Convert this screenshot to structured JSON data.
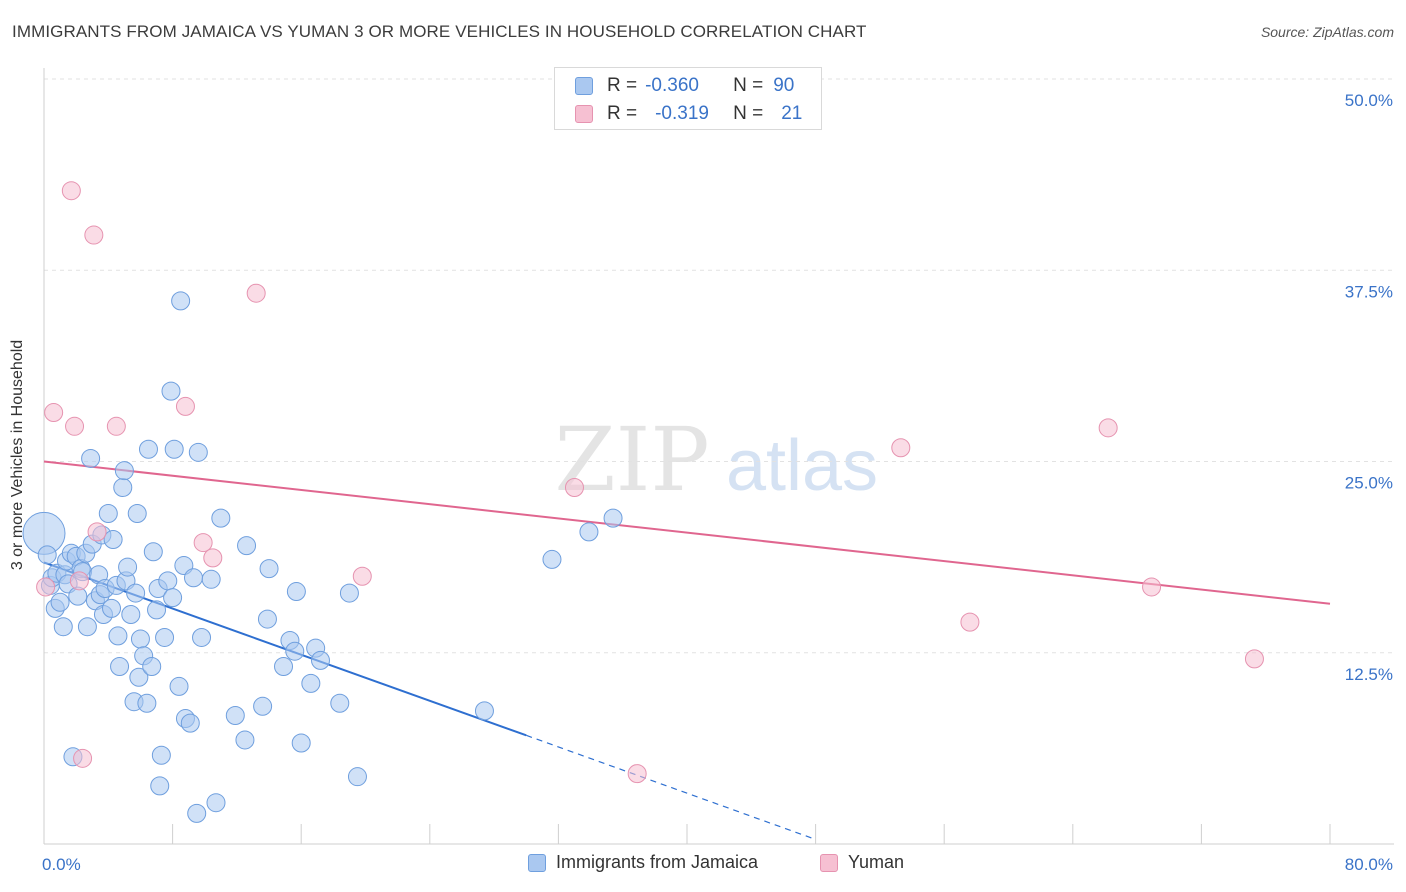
{
  "title": "IMMIGRANTS FROM JAMAICA VS YUMAN 3 OR MORE VEHICLES IN HOUSEHOLD CORRELATION CHART",
  "source": "Source: ZipAtlas.com",
  "watermark": {
    "zip": "ZIP",
    "atlas": "atlas"
  },
  "colors": {
    "blue_fill": "#aac8f0",
    "blue_stroke": "#6f9fde",
    "blue_line": "#2e6fd0",
    "pink_fill": "#f6c0d2",
    "pink_stroke": "#e693b0",
    "pink_line": "#e0668f",
    "tick_label": "#3a73c8",
    "grid": "#e2e2e2"
  },
  "stats_legend": [
    {
      "r_label": "R =",
      "r_value": "-0.360",
      "n_label": "N =",
      "n_value": "90"
    },
    {
      "r_label": "R =",
      "r_value": "-0.319",
      "n_label": "N =",
      "n_value": "21"
    }
  ],
  "chart_data": {
    "type": "scatter",
    "title": "IMMIGRANTS FROM JAMAICA VS YUMAN 3 OR MORE VEHICLES IN HOUSEHOLD CORRELATION CHART",
    "xlabel": "",
    "ylabel": "3 or more Vehicles in Household",
    "xlim": [
      0,
      80
    ],
    "ylim": [
      0,
      50
    ],
    "x_tick_labels": [
      "0.0%",
      "80.0%"
    ],
    "y_ticks": [
      12.5,
      25.0,
      37.5,
      50.0
    ],
    "y_tick_labels": [
      "12.5%",
      "25.0%",
      "37.5%",
      "50.0%"
    ],
    "grid": true,
    "legend_position": "bottom-center",
    "series": [
      {
        "name": "Immigrants from Jamaica",
        "color": "#aac8f0",
        "r": -0.36,
        "n": 90,
        "trend": {
          "x_start": 0,
          "y_start": 18.4,
          "x_end": 30,
          "y_end": 7.1,
          "dash_to_x": 48,
          "dash_to_y": 0.3
        },
        "points": [
          [
            0,
            20.3
          ],
          [
            0.2,
            18.9
          ],
          [
            0.4,
            16.9
          ],
          [
            0.5,
            17.4
          ],
          [
            0.7,
            15.4
          ],
          [
            0.8,
            17.7
          ],
          [
            1.0,
            15.8
          ],
          [
            1.2,
            14.2
          ],
          [
            1.3,
            17.6
          ],
          [
            1.4,
            18.5
          ],
          [
            1.5,
            17.0
          ],
          [
            1.7,
            19.0
          ],
          [
            1.8,
            5.7
          ],
          [
            2.0,
            18.8
          ],
          [
            2.1,
            16.2
          ],
          [
            2.3,
            18.0
          ],
          [
            2.4,
            17.8
          ],
          [
            2.6,
            19.0
          ],
          [
            2.7,
            14.2
          ],
          [
            2.9,
            25.2
          ],
          [
            3.0,
            19.6
          ],
          [
            3.2,
            15.9
          ],
          [
            3.4,
            17.6
          ],
          [
            3.5,
            16.3
          ],
          [
            3.6,
            20.2
          ],
          [
            3.7,
            15.0
          ],
          [
            3.8,
            16.7
          ],
          [
            4.0,
            21.6
          ],
          [
            4.2,
            15.4
          ],
          [
            4.3,
            19.9
          ],
          [
            4.5,
            16.9
          ],
          [
            4.6,
            13.6
          ],
          [
            4.7,
            11.6
          ],
          [
            4.9,
            23.3
          ],
          [
            5.0,
            24.4
          ],
          [
            5.1,
            17.2
          ],
          [
            5.2,
            18.1
          ],
          [
            5.4,
            15.0
          ],
          [
            5.6,
            9.3
          ],
          [
            5.7,
            16.4
          ],
          [
            5.8,
            21.6
          ],
          [
            5.9,
            10.9
          ],
          [
            6.0,
            13.4
          ],
          [
            6.2,
            12.3
          ],
          [
            6.4,
            9.2
          ],
          [
            6.5,
            25.8
          ],
          [
            6.7,
            11.6
          ],
          [
            6.8,
            19.1
          ],
          [
            7.0,
            15.3
          ],
          [
            7.1,
            16.7
          ],
          [
            7.2,
            3.8
          ],
          [
            7.3,
            5.8
          ],
          [
            7.5,
            13.5
          ],
          [
            7.7,
            17.2
          ],
          [
            7.9,
            29.6
          ],
          [
            8.0,
            16.1
          ],
          [
            8.1,
            25.8
          ],
          [
            8.4,
            10.3
          ],
          [
            8.5,
            35.5
          ],
          [
            8.7,
            18.2
          ],
          [
            8.8,
            8.2
          ],
          [
            9.1,
            7.9
          ],
          [
            9.3,
            17.4
          ],
          [
            9.5,
            2.0
          ],
          [
            9.6,
            25.6
          ],
          [
            9.8,
            13.5
          ],
          [
            10.4,
            17.3
          ],
          [
            10.7,
            2.7
          ],
          [
            11.0,
            21.3
          ],
          [
            11.9,
            8.4
          ],
          [
            12.5,
            6.8
          ],
          [
            12.6,
            19.5
          ],
          [
            13.6,
            9.0
          ],
          [
            13.9,
            14.7
          ],
          [
            14.0,
            18.0
          ],
          [
            14.9,
            11.6
          ],
          [
            15.3,
            13.3
          ],
          [
            15.6,
            12.6
          ],
          [
            15.7,
            16.5
          ],
          [
            16.0,
            6.6
          ],
          [
            16.6,
            10.5
          ],
          [
            16.9,
            12.8
          ],
          [
            17.2,
            12.0
          ],
          [
            18.4,
            9.2
          ],
          [
            19.0,
            16.4
          ],
          [
            19.5,
            4.4
          ],
          [
            27.4,
            8.7
          ],
          [
            31.6,
            18.6
          ],
          [
            33.9,
            20.4
          ],
          [
            35.4,
            21.3
          ]
        ]
      },
      {
        "name": "Yuman",
        "color": "#f6c0d2",
        "r": -0.319,
        "n": 21,
        "trend": {
          "x_start": 0,
          "y_start": 25.0,
          "x_end": 80,
          "y_end": 15.7
        },
        "points": [
          [
            0.1,
            16.8
          ],
          [
            0.6,
            28.2
          ],
          [
            1.7,
            42.7
          ],
          [
            1.9,
            27.3
          ],
          [
            2.2,
            17.2
          ],
          [
            2.4,
            5.6
          ],
          [
            3.1,
            39.8
          ],
          [
            3.3,
            20.4
          ],
          [
            4.5,
            27.3
          ],
          [
            8.8,
            28.6
          ],
          [
            9.9,
            19.7
          ],
          [
            10.5,
            18.7
          ],
          [
            13.2,
            36.0
          ],
          [
            19.8,
            17.5
          ],
          [
            33.0,
            23.3
          ],
          [
            36.9,
            4.6
          ],
          [
            53.3,
            25.9
          ],
          [
            57.6,
            14.5
          ],
          [
            66.2,
            27.2
          ],
          [
            68.9,
            16.8
          ],
          [
            75.3,
            12.1
          ]
        ]
      }
    ]
  }
}
